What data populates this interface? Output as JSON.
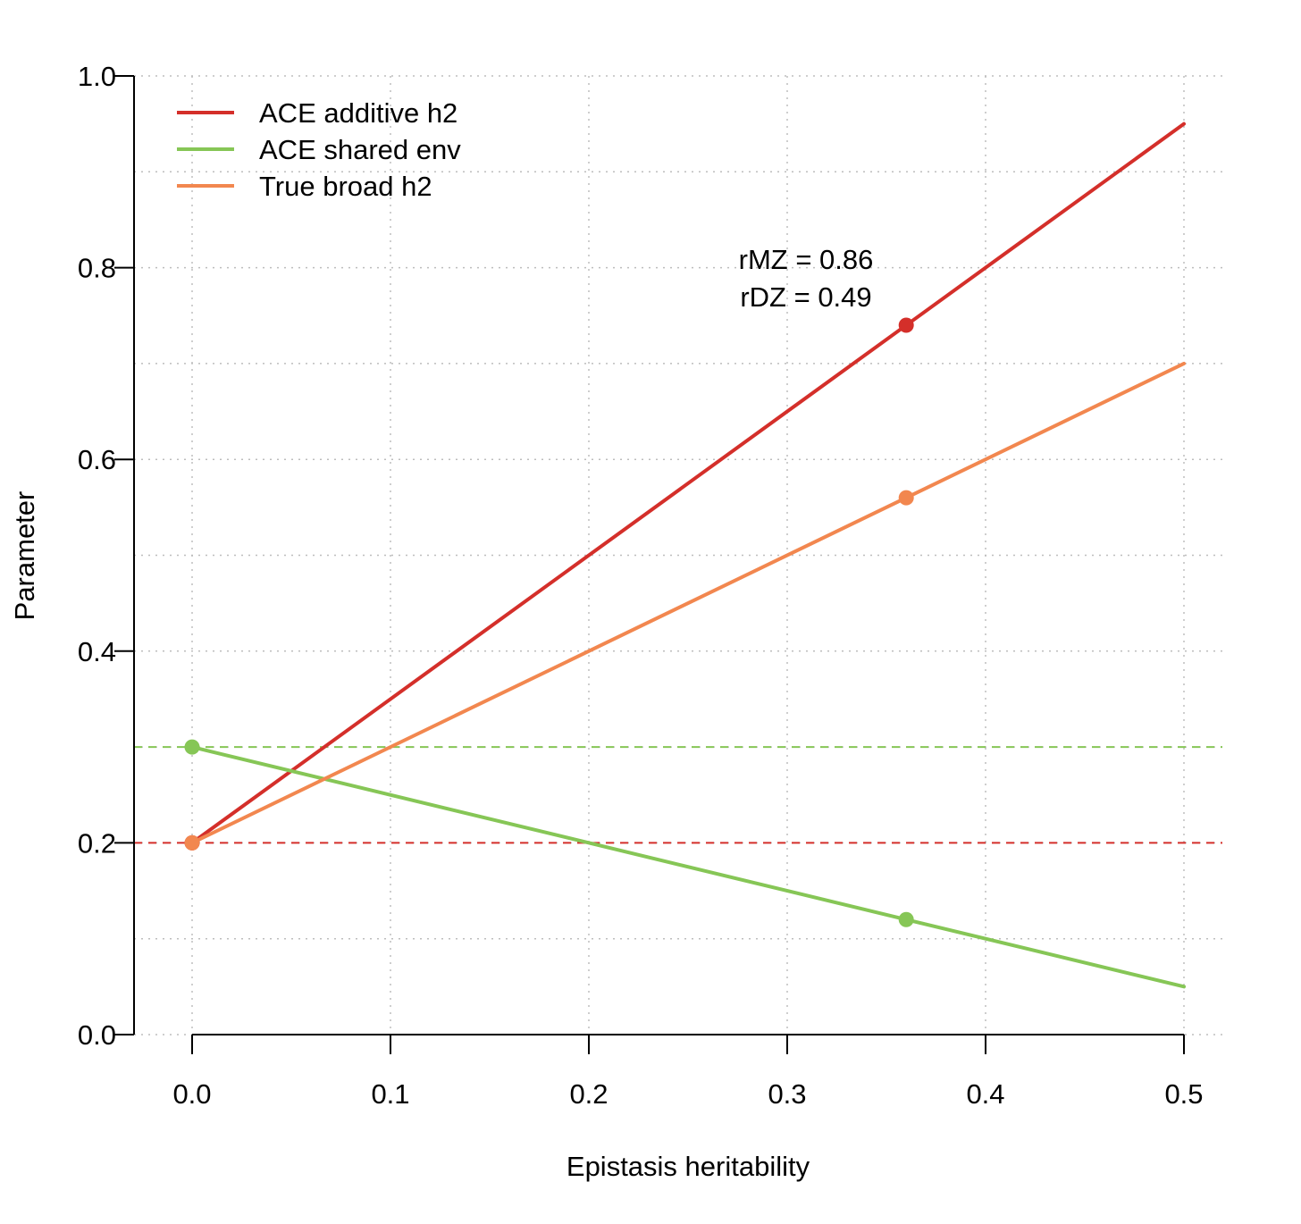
{
  "chart_data": {
    "type": "line",
    "title": "",
    "xlabel": "Epistasis heritability",
    "ylabel": "Parameter",
    "xlim": [
      0,
      0.5
    ],
    "ylim": [
      0,
      1
    ],
    "xticks": [
      "0.0",
      "0.1",
      "0.2",
      "0.3",
      "0.4",
      "0.5"
    ],
    "yticks": [
      "0.0",
      "0.2",
      "0.4",
      "0.6",
      "0.8",
      "1.0"
    ],
    "grid": "dotted",
    "legend_position": "top-left",
    "series": [
      {
        "name": "ACE additive h2",
        "color": "#d42f2a",
        "x": [
          0,
          0.5
        ],
        "y": [
          0.2,
          0.95
        ],
        "marker_points": [
          [
            0,
            0.2
          ],
          [
            0.36,
            0.74
          ]
        ]
      },
      {
        "name": "ACE shared env",
        "color": "#86c656",
        "x": [
          0,
          0.5
        ],
        "y": [
          0.3,
          0.05
        ],
        "marker_points": [
          [
            0,
            0.3
          ],
          [
            0.36,
            0.12
          ]
        ]
      },
      {
        "name": "True broad h2",
        "color": "#f2874f",
        "x": [
          0,
          0.5
        ],
        "y": [
          0.2,
          0.7
        ],
        "marker_points": [
          [
            0,
            0.2
          ],
          [
            0.36,
            0.56
          ]
        ]
      }
    ],
    "reference_lines": [
      {
        "name": "shared-env-reference",
        "y": 0.3,
        "color": "#86c656",
        "style": "dashed"
      },
      {
        "name": "additive-reference",
        "y": 0.2,
        "color": "#d42f2a",
        "style": "dashed"
      }
    ],
    "annotations": [
      "rMZ = 0.86",
      "rDZ = 0.49"
    ]
  }
}
